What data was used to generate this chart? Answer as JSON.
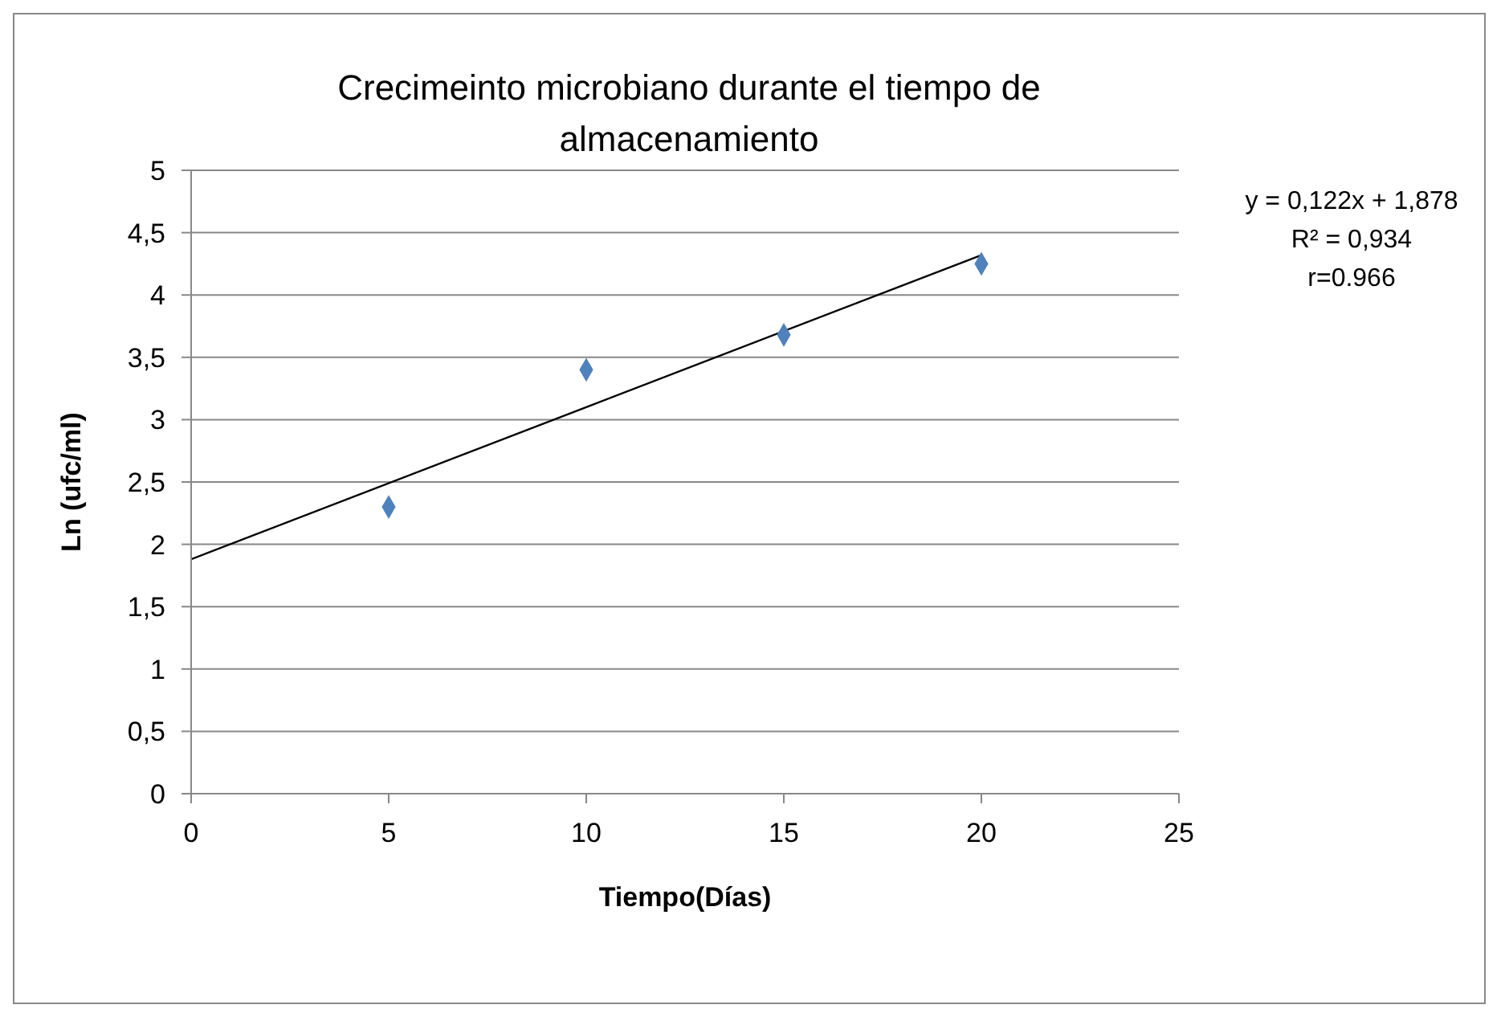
{
  "chart_data": {
    "type": "scatter",
    "title": "Crecimeinto microbiano durante el  tiempo de almacenamiento",
    "xlabel": "Tiempo(Días)",
    "ylabel": "Ln (ufc/ml)",
    "series": [
      {
        "type": "scatter",
        "color": "#4f81bd",
        "x": [
          5,
          10,
          15,
          20
        ],
        "values": [
          2.3,
          3.4,
          3.68,
          4.25
        ],
        "marker": "diamond"
      },
      {
        "type": "line",
        "color": "#000000",
        "x": [
          0,
          20
        ],
        "values": [
          1.88,
          4.32
        ],
        "marker": "none"
      }
    ],
    "xlim": [
      0,
      25
    ],
    "xticks": [
      0,
      5,
      10,
      15,
      20,
      25
    ],
    "ylim": [
      0,
      5
    ],
    "yticks": [
      0,
      {
        "value": 0.5,
        "label": "0,5"
      },
      1,
      {
        "value": 1.5,
        "label": "1,5"
      },
      2,
      {
        "value": 2.5,
        "label": "2,5"
      },
      3,
      {
        "value": 3.5,
        "label": "3,5"
      },
      4,
      {
        "value": 4.5,
        "label": "4,5"
      },
      5
    ],
    "grid": "y",
    "annotations": [
      "y = 0,122x + 1,878",
      "R² = 0,934",
      "r=0.966"
    ]
  }
}
